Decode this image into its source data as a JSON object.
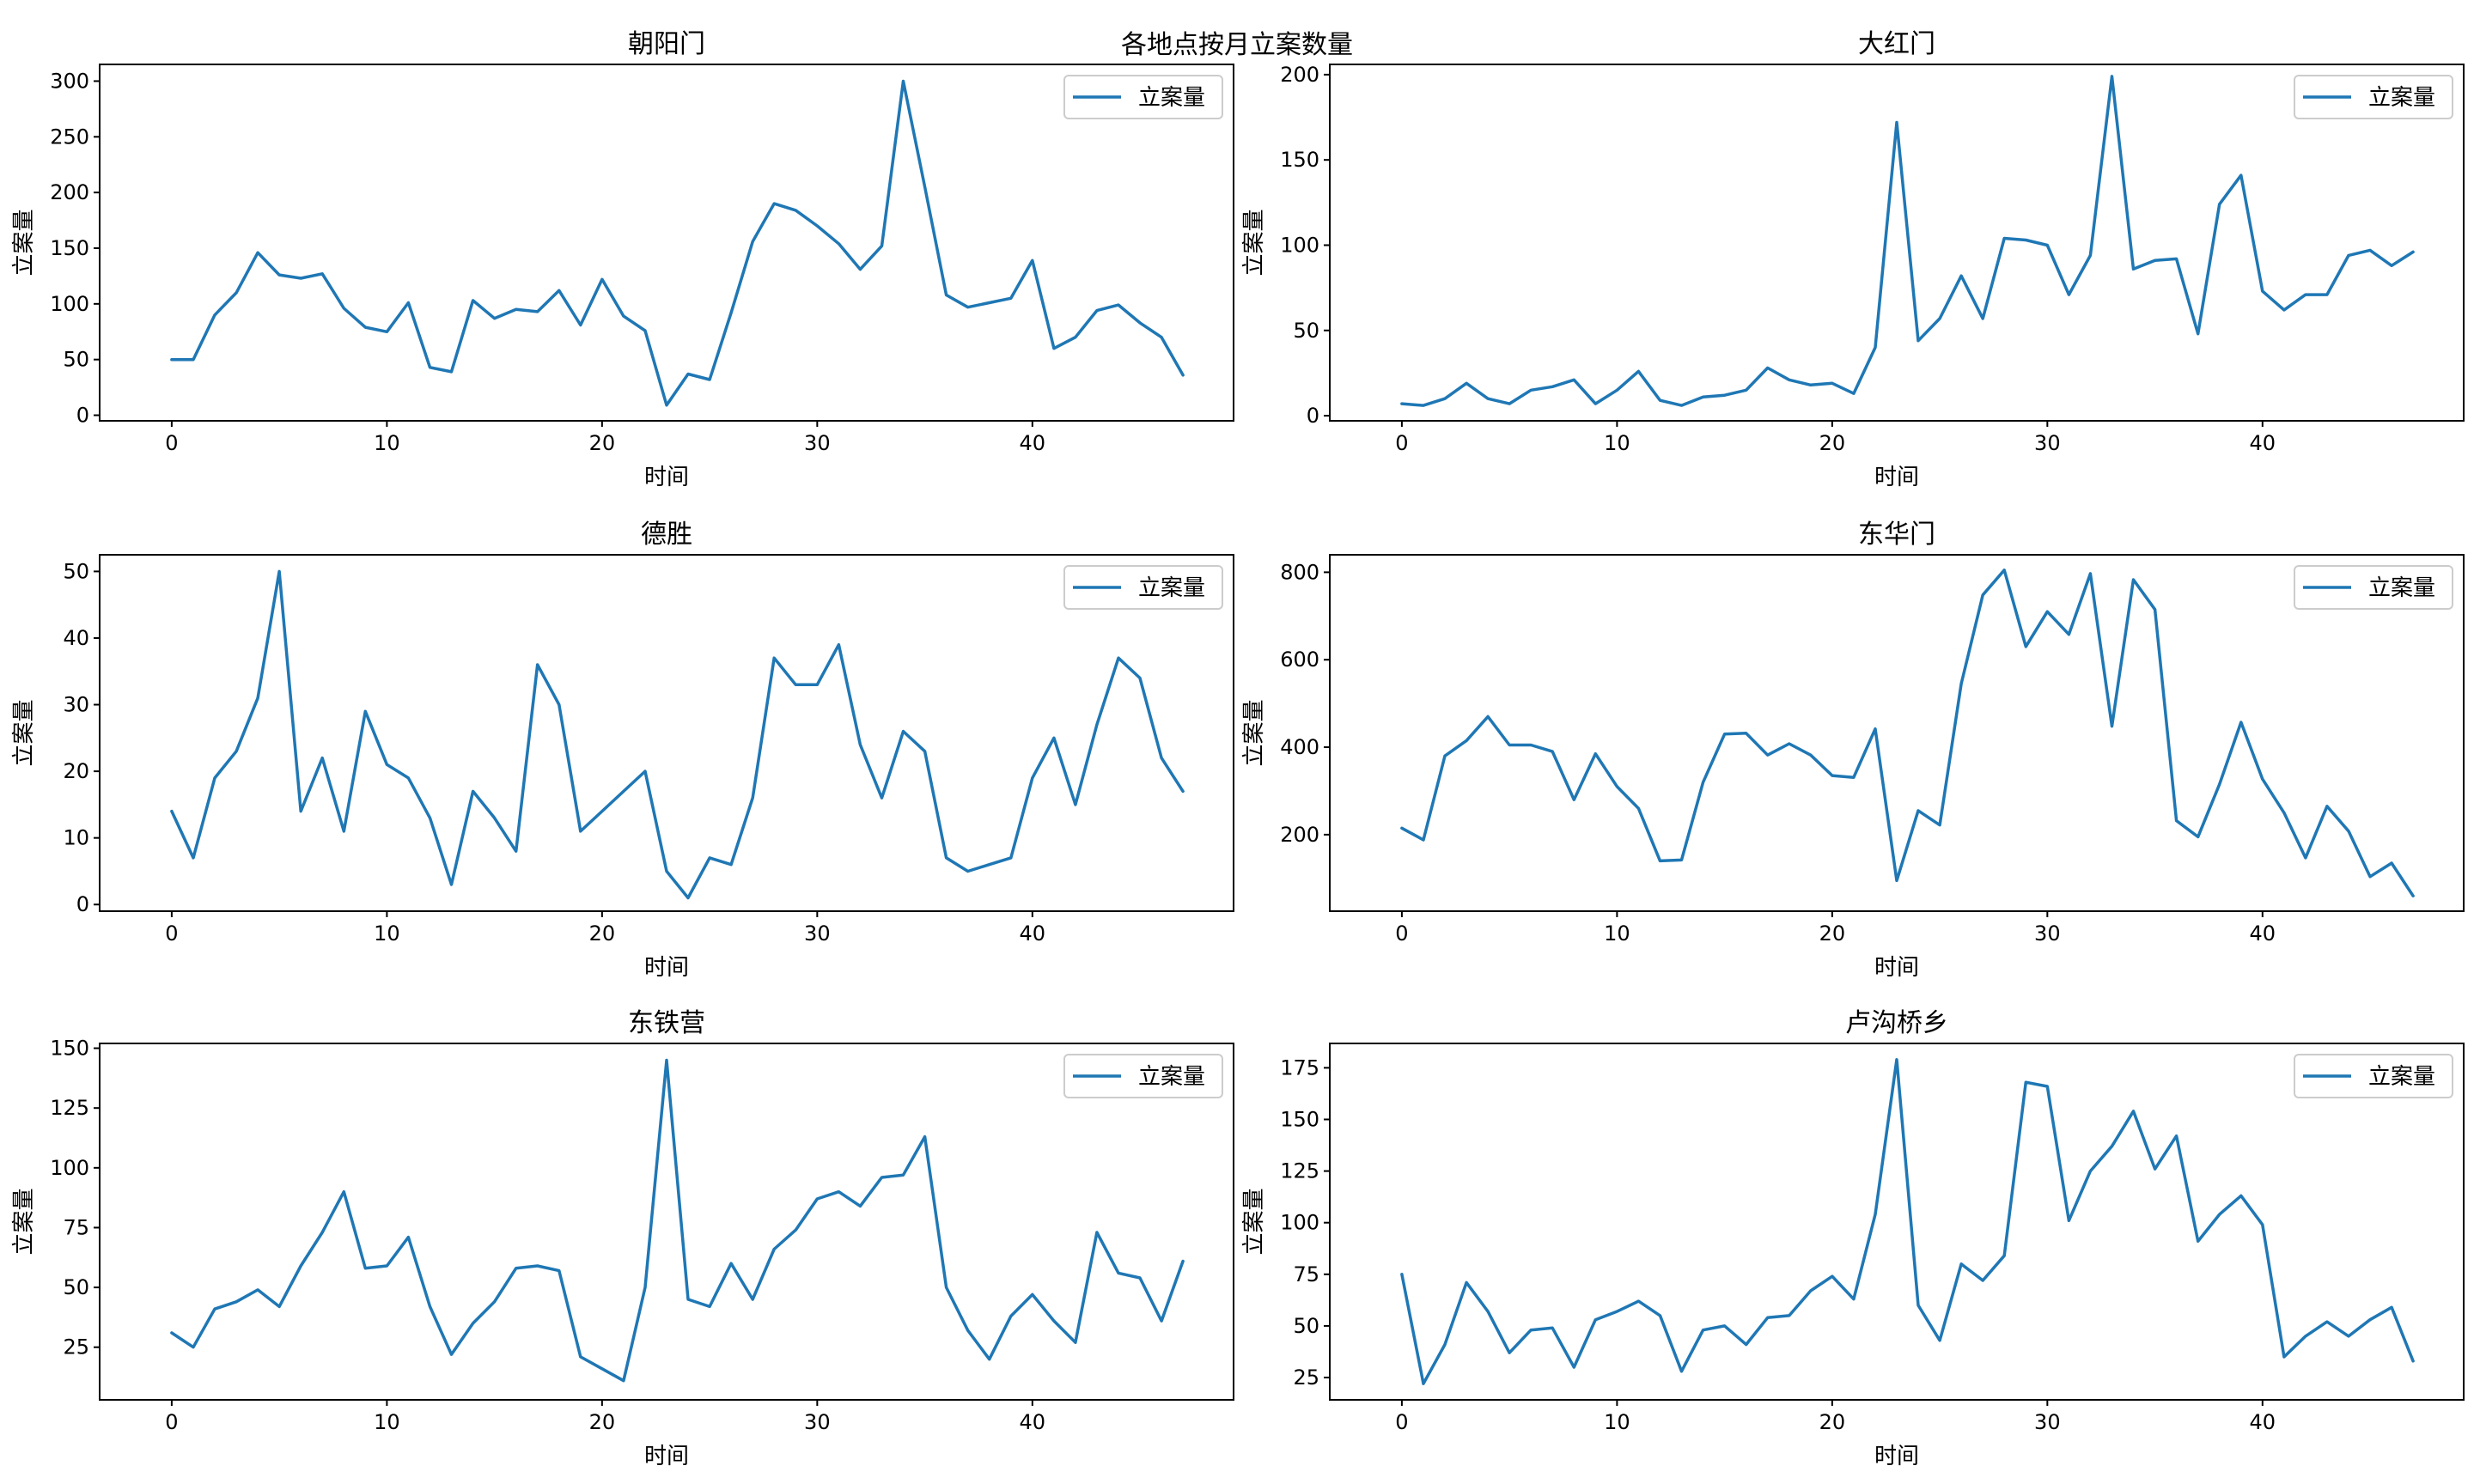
{
  "figure": {
    "title": "各地点按月立案数量"
  },
  "colors": {
    "series": "#1f77b4",
    "axes": "#000000",
    "legend_border": "#cccccc"
  },
  "chart_data": [
    {
      "type": "line",
      "title": "朝阳门",
      "xlabel": "时间",
      "ylabel": "立案量",
      "legend_position": "top-right",
      "xlim": [
        -3.35,
        49.35
      ],
      "ylim": [
        -5,
        315
      ],
      "xticks": [
        0,
        10,
        20,
        30,
        40
      ],
      "yticks": [
        0,
        50,
        100,
        150,
        200,
        250,
        300
      ],
      "series": [
        {
          "name": "立案量",
          "x": [
            0,
            1,
            2,
            3,
            4,
            5,
            6,
            7,
            8,
            9,
            10,
            11,
            12,
            13,
            14,
            15,
            16,
            17,
            18,
            19,
            20,
            21,
            22,
            23,
            24,
            25,
            26,
            27,
            28,
            29,
            30,
            31,
            32,
            33,
            34,
            35,
            36,
            37,
            38,
            39,
            40,
            41,
            42,
            43,
            44,
            45,
            46,
            47
          ],
          "values": [
            50,
            50,
            90,
            110,
            146,
            126,
            123,
            127,
            96,
            79,
            75,
            101,
            43,
            39,
            103,
            87,
            95,
            93,
            112,
            81,
            122,
            89,
            76,
            9,
            37,
            32,
            92,
            156,
            190,
            184,
            170,
            154,
            131,
            152,
            300,
            205,
            108,
            97,
            101,
            105,
            139,
            60,
            70,
            94,
            99,
            83,
            70,
            36
          ]
        }
      ]
    },
    {
      "type": "line",
      "title": "大红门",
      "xlabel": "时间",
      "ylabel": "立案量",
      "legend_position": "top-right",
      "xlim": [
        -3.35,
        49.35
      ],
      "ylim": [
        -3,
        206
      ],
      "xticks": [
        0,
        10,
        20,
        30,
        40
      ],
      "yticks": [
        0,
        50,
        100,
        150,
        200
      ],
      "series": [
        {
          "name": "立案量",
          "x": [
            0,
            1,
            2,
            3,
            4,
            5,
            6,
            7,
            8,
            9,
            10,
            11,
            12,
            13,
            14,
            15,
            16,
            17,
            18,
            19,
            20,
            21,
            22,
            23,
            24,
            25,
            26,
            27,
            28,
            29,
            30,
            31,
            32,
            33,
            34,
            35,
            36,
            37,
            38,
            39,
            40,
            41,
            42,
            43,
            44,
            45,
            46,
            47
          ],
          "values": [
            7,
            6,
            10,
            19,
            10,
            7,
            15,
            17,
            21,
            7,
            15,
            26,
            9,
            6,
            11,
            12,
            15,
            28,
            21,
            18,
            19,
            13,
            40,
            172,
            44,
            57,
            82,
            57,
            104,
            103,
            100,
            71,
            94,
            199,
            86,
            91,
            92,
            48,
            124,
            141,
            73,
            62,
            71,
            71,
            94,
            97,
            88,
            96
          ]
        }
      ]
    },
    {
      "type": "line",
      "title": "德胜",
      "xlabel": "时间",
      "ylabel": "立案量",
      "legend_position": "top-right",
      "xlim": [
        -3.35,
        49.35
      ],
      "ylim": [
        -1,
        52.5
      ],
      "xticks": [
        0,
        10,
        20,
        30,
        40
      ],
      "yticks": [
        0,
        10,
        20,
        30,
        40,
        50
      ],
      "series": [
        {
          "name": "立案量",
          "x": [
            0,
            1,
            2,
            3,
            4,
            5,
            6,
            7,
            8,
            9,
            10,
            11,
            12,
            13,
            14,
            15,
            16,
            17,
            18,
            19,
            20,
            21,
            22,
            23,
            24,
            25,
            26,
            27,
            28,
            29,
            30,
            31,
            32,
            33,
            34,
            35,
            36,
            37,
            38,
            39,
            40,
            41,
            42,
            43,
            44,
            45,
            46,
            47
          ],
          "values": [
            14,
            7,
            19,
            23,
            31,
            50,
            14,
            22,
            11,
            29,
            21,
            19,
            13,
            3,
            17,
            13,
            8,
            36,
            30,
            11,
            14,
            17,
            20,
            5,
            1,
            7,
            6,
            16,
            37,
            33,
            33,
            39,
            24,
            16,
            26,
            23,
            7,
            5,
            6,
            7,
            19,
            25,
            15,
            27,
            37,
            34,
            22,
            17
          ]
        }
      ]
    },
    {
      "type": "line",
      "title": "东华门",
      "xlabel": "时间",
      "ylabel": "立案量",
      "legend_position": "top-right",
      "xlim": [
        -3.35,
        49.35
      ],
      "ylim": [
        25,
        840
      ],
      "xticks": [
        0,
        10,
        20,
        30,
        40
      ],
      "yticks": [
        200,
        400,
        600,
        800
      ],
      "series": [
        {
          "name": "立案量",
          "x": [
            0,
            1,
            2,
            3,
            4,
            5,
            6,
            7,
            8,
            9,
            10,
            11,
            12,
            13,
            14,
            15,
            16,
            17,
            18,
            19,
            20,
            21,
            22,
            23,
            24,
            25,
            26,
            27,
            28,
            29,
            30,
            31,
            32,
            33,
            34,
            35,
            36,
            37,
            38,
            39,
            40,
            41,
            42,
            43,
            44,
            45,
            46,
            47
          ],
          "values": [
            215,
            188,
            380,
            415,
            470,
            405,
            405,
            390,
            280,
            385,
            310,
            260,
            140,
            142,
            320,
            430,
            432,
            382,
            408,
            382,
            335,
            331,
            442,
            95,
            255,
            222,
            545,
            748,
            805,
            630,
            710,
            658,
            797,
            448,
            783,
            715,
            232,
            195,
            315,
            457,
            327,
            250,
            147,
            265,
            208,
            104,
            135,
            60
          ]
        }
      ]
    },
    {
      "type": "line",
      "title": "东铁营",
      "xlabel": "时间",
      "ylabel": "立案量",
      "legend_position": "top-right",
      "xlim": [
        -3.35,
        49.35
      ],
      "ylim": [
        3,
        152
      ],
      "xticks": [
        0,
        10,
        20,
        30,
        40
      ],
      "yticks": [
        25,
        50,
        75,
        100,
        125,
        150
      ],
      "series": [
        {
          "name": "立案量",
          "x": [
            0,
            1,
            2,
            3,
            4,
            5,
            6,
            7,
            8,
            9,
            10,
            11,
            12,
            13,
            14,
            15,
            16,
            17,
            18,
            19,
            20,
            21,
            22,
            23,
            24,
            25,
            26,
            27,
            28,
            29,
            30,
            31,
            32,
            33,
            34,
            35,
            36,
            37,
            38,
            39,
            40,
            41,
            42,
            43,
            44,
            45,
            46,
            47
          ],
          "values": [
            31,
            25,
            41,
            44,
            49,
            42,
            59,
            73,
            90,
            58,
            59,
            71,
            42,
            22,
            35,
            44,
            58,
            59,
            57,
            21,
            16,
            11,
            50,
            145,
            45,
            42,
            60,
            45,
            66,
            74,
            87,
            90,
            84,
            96,
            97,
            113,
            50,
            32,
            20,
            38,
            47,
            36,
            27,
            73,
            56,
            54,
            36,
            61
          ]
        }
      ]
    },
    {
      "type": "line",
      "title": "卢沟桥乡",
      "xlabel": "时间",
      "ylabel": "立案量",
      "legend_position": "top-right",
      "xlim": [
        -3.35,
        49.35
      ],
      "ylim": [
        14.2,
        186.8
      ],
      "xticks": [
        0,
        10,
        20,
        30,
        40
      ],
      "yticks": [
        25,
        50,
        75,
        100,
        125,
        150,
        175
      ],
      "series": [
        {
          "name": "立案量",
          "x": [
            0,
            1,
            2,
            3,
            4,
            5,
            6,
            7,
            8,
            9,
            10,
            11,
            12,
            13,
            14,
            15,
            16,
            17,
            18,
            19,
            20,
            21,
            22,
            23,
            24,
            25,
            26,
            27,
            28,
            29,
            30,
            31,
            32,
            33,
            34,
            35,
            36,
            37,
            38,
            39,
            40,
            41,
            42,
            43,
            44,
            45,
            46,
            47
          ],
          "values": [
            75,
            22,
            41,
            71,
            57,
            37,
            48,
            49,
            30,
            53,
            57,
            62,
            55,
            28,
            48,
            50,
            41,
            54,
            55,
            67,
            74,
            63,
            104,
            179,
            60,
            43,
            80,
            72,
            84,
            168,
            166,
            101,
            125,
            137,
            154,
            126,
            142,
            91,
            104,
            113,
            99,
            35,
            45,
            52,
            45,
            53,
            59,
            33
          ]
        }
      ]
    }
  ]
}
